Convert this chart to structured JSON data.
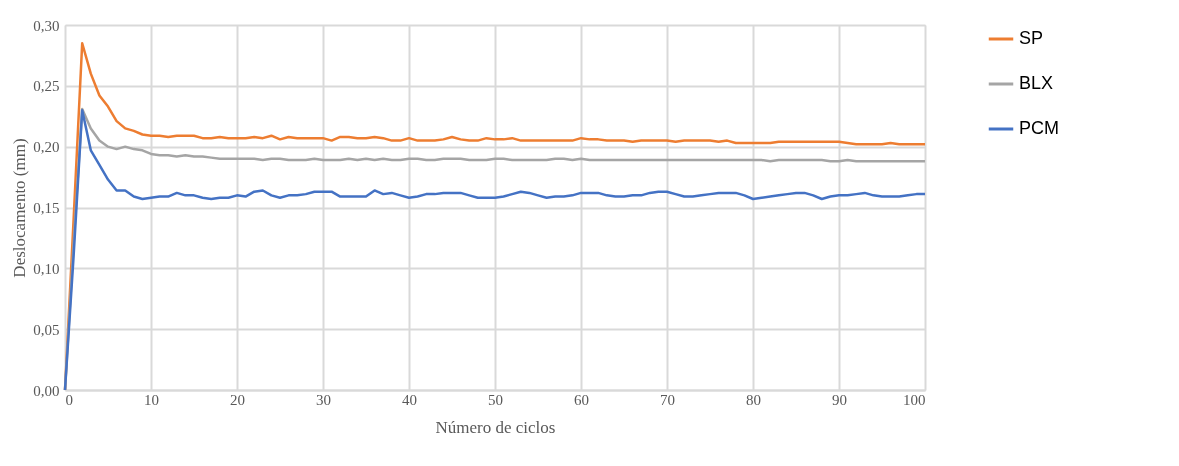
{
  "chart_data": {
    "type": "line",
    "xlabel": "Número de ciclos",
    "ylabel": "Deslocamento (mm)",
    "x": [
      0,
      1,
      2,
      3,
      4,
      5,
      6,
      7,
      8,
      9,
      10,
      11,
      12,
      13,
      14,
      15,
      16,
      17,
      18,
      19,
      20,
      21,
      22,
      23,
      24,
      25,
      26,
      27,
      28,
      29,
      30,
      31,
      32,
      33,
      34,
      35,
      36,
      37,
      38,
      39,
      40,
      41,
      42,
      43,
      44,
      45,
      46,
      47,
      48,
      49,
      50,
      51,
      52,
      53,
      54,
      55,
      56,
      57,
      58,
      59,
      60,
      61,
      62,
      63,
      64,
      65,
      66,
      67,
      68,
      69,
      70,
      71,
      72,
      73,
      74,
      75,
      76,
      77,
      78,
      79,
      80,
      81,
      82,
      83,
      84,
      85,
      86,
      87,
      88,
      89,
      90,
      91,
      92,
      93,
      94,
      95,
      96,
      97,
      98,
      99,
      100
    ],
    "xlim": [
      0,
      100
    ],
    "xticks": [
      0,
      10,
      20,
      30,
      40,
      50,
      60,
      70,
      80,
      90,
      100
    ],
    "ylim": [
      0,
      0.3
    ],
    "yticks": [
      {
        "value": 0,
        "label": "0,00"
      },
      {
        "value": 0.05,
        "label": "0,05"
      },
      {
        "value": 0.1,
        "label": "0,10"
      },
      {
        "value": 0.15,
        "label": "0,15"
      },
      {
        "value": 0.2,
        "label": "0,20"
      },
      {
        "value": 0.25,
        "label": "0,25"
      },
      {
        "value": 0.3,
        "label": "0,30"
      }
    ],
    "grid": true,
    "legend": "right",
    "marker": "none",
    "line_style": "solid",
    "series": [
      {
        "name": "SP",
        "color": "#ed7d31",
        "values": [
          0,
          0.14,
          0.285,
          0.26,
          0.242,
          0.233,
          0.221,
          0.215,
          0.213,
          0.21,
          0.209,
          0.209,
          0.208,
          0.209,
          0.209,
          0.209,
          0.207,
          0.207,
          0.208,
          0.207,
          0.207,
          0.207,
          0.208,
          0.207,
          0.209,
          0.206,
          0.208,
          0.207,
          0.207,
          0.207,
          0.207,
          0.205,
          0.208,
          0.208,
          0.207,
          0.207,
          0.208,
          0.207,
          0.205,
          0.205,
          0.207,
          0.205,
          0.205,
          0.205,
          0.206,
          0.208,
          0.206,
          0.205,
          0.205,
          0.207,
          0.206,
          0.206,
          0.207,
          0.205,
          0.205,
          0.205,
          0.205,
          0.205,
          0.205,
          0.205,
          0.207,
          0.206,
          0.206,
          0.205,
          0.205,
          0.205,
          0.204,
          0.205,
          0.205,
          0.205,
          0.205,
          0.204,
          0.205,
          0.205,
          0.205,
          0.205,
          0.204,
          0.205,
          0.203,
          0.203,
          0.203,
          0.203,
          0.203,
          0.204,
          0.204,
          0.204,
          0.204,
          0.204,
          0.204,
          0.204,
          0.204,
          0.203,
          0.202,
          0.202,
          0.202,
          0.202,
          0.203,
          0.202,
          0.202,
          0.202,
          0.202
        ]
      },
      {
        "name": "BLX",
        "color": "#a5a5a5",
        "values": [
          0,
          0.12,
          0.231,
          0.215,
          0.205,
          0.2,
          0.198,
          0.2,
          0.198,
          0.197,
          0.194,
          0.193,
          0.193,
          0.192,
          0.193,
          0.192,
          0.192,
          0.191,
          0.19,
          0.19,
          0.19,
          0.19,
          0.19,
          0.189,
          0.19,
          0.19,
          0.189,
          0.189,
          0.189,
          0.19,
          0.189,
          0.189,
          0.189,
          0.19,
          0.189,
          0.19,
          0.189,
          0.19,
          0.189,
          0.189,
          0.19,
          0.19,
          0.189,
          0.189,
          0.19,
          0.19,
          0.19,
          0.189,
          0.189,
          0.189,
          0.19,
          0.19,
          0.189,
          0.189,
          0.189,
          0.189,
          0.189,
          0.19,
          0.19,
          0.189,
          0.19,
          0.189,
          0.189,
          0.189,
          0.189,
          0.189,
          0.189,
          0.189,
          0.189,
          0.189,
          0.189,
          0.189,
          0.189,
          0.189,
          0.189,
          0.189,
          0.189,
          0.189,
          0.189,
          0.189,
          0.189,
          0.189,
          0.188,
          0.189,
          0.189,
          0.189,
          0.189,
          0.189,
          0.189,
          0.188,
          0.188,
          0.189,
          0.188,
          0.188,
          0.188,
          0.188,
          0.188,
          0.188,
          0.188,
          0.188,
          0.188
        ]
      },
      {
        "name": "PCM",
        "color": "#4472c4",
        "values": [
          0,
          0.11,
          0.23,
          0.197,
          0.185,
          0.173,
          0.164,
          0.164,
          0.159,
          0.157,
          0.158,
          0.159,
          0.159,
          0.162,
          0.16,
          0.16,
          0.158,
          0.157,
          0.158,
          0.158,
          0.16,
          0.159,
          0.163,
          0.164,
          0.16,
          0.158,
          0.16,
          0.16,
          0.161,
          0.163,
          0.163,
          0.163,
          0.159,
          0.159,
          0.159,
          0.159,
          0.164,
          0.161,
          0.162,
          0.16,
          0.158,
          0.159,
          0.161,
          0.161,
          0.162,
          0.162,
          0.162,
          0.16,
          0.158,
          0.158,
          0.158,
          0.159,
          0.161,
          0.163,
          0.162,
          0.16,
          0.158,
          0.159,
          0.159,
          0.16,
          0.162,
          0.162,
          0.162,
          0.16,
          0.159,
          0.159,
          0.16,
          0.16,
          0.162,
          0.163,
          0.163,
          0.161,
          0.159,
          0.159,
          0.16,
          0.161,
          0.162,
          0.162,
          0.162,
          0.16,
          0.157,
          0.158,
          0.159,
          0.16,
          0.161,
          0.162,
          0.162,
          0.16,
          0.157,
          0.159,
          0.16,
          0.16,
          0.161,
          0.162,
          0.16,
          0.159,
          0.159,
          0.159,
          0.16,
          0.161,
          0.161
        ]
      }
    ]
  }
}
